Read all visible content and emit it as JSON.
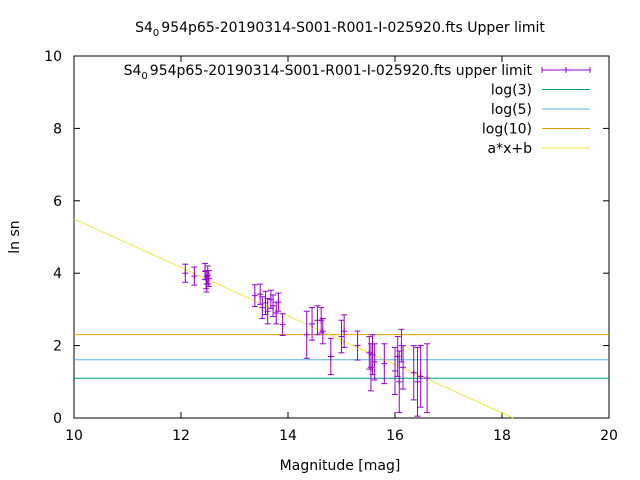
{
  "chart_data": {
    "type": "scatter",
    "title_prefix": "S4",
    "title_subscript": "0",
    "title_suffix": "954p65-20190314-S001-R001-I-025920.fts Upper limit",
    "xlabel": "Magnitude [mag]",
    "ylabel": "ln sn",
    "xlim": [
      10,
      20
    ],
    "ylim": [
      0,
      10
    ],
    "xticks": [
      "10",
      "12",
      "14",
      "16",
      "18",
      "20"
    ],
    "yticks": [
      "0",
      "2",
      "4",
      "6",
      "8",
      "10"
    ],
    "grid": false,
    "legend_position": "top-right",
    "legend": [
      {
        "prefix": "S4",
        "sub": "0",
        "suffix": "954p65-20190314-S001-R001-I-025920.fts upper limit",
        "kind": "errorbar",
        "color": "#9400d3"
      },
      {
        "text": "log(3)",
        "kind": "line",
        "color": "#009e73"
      },
      {
        "text": "log(5)",
        "kind": "line",
        "color": "#56b4e9"
      },
      {
        "text": "log(10)",
        "kind": "line",
        "color": "#e69f00"
      },
      {
        "text": "a*x+b",
        "kind": "line",
        "color": "#f0e442"
      }
    ],
    "hlines": [
      {
        "name": "log(3)",
        "y": 1.0986,
        "color": "#009e73"
      },
      {
        "name": "log(5)",
        "y": 1.6094,
        "color": "#56b4e9"
      },
      {
        "name": "log(10)",
        "y": 2.3026,
        "color": "#e69f00"
      }
    ],
    "fit": {
      "name": "a*x+b",
      "a": -0.67,
      "b": 12.2,
      "color": "#f0e442"
    },
    "series": [
      {
        "name": "S4_0954p65-20190314-S001-R001-I-025920.fts upper limit",
        "color": "#9400d3",
        "points": [
          {
            "x": 12.08,
            "y": 4.0,
            "err": 0.25
          },
          {
            "x": 12.25,
            "y": 3.92,
            "err": 0.25
          },
          {
            "x": 12.45,
            "y": 4.05,
            "err": 0.22
          },
          {
            "x": 12.47,
            "y": 3.82,
            "err": 0.25
          },
          {
            "x": 12.48,
            "y": 3.7,
            "err": 0.22
          },
          {
            "x": 12.5,
            "y": 3.95,
            "err": 0.25
          },
          {
            "x": 12.52,
            "y": 3.85,
            "err": 0.22
          },
          {
            "x": 13.38,
            "y": 3.38,
            "err": 0.3
          },
          {
            "x": 13.48,
            "y": 3.42,
            "err": 0.28
          },
          {
            "x": 13.52,
            "y": 3.05,
            "err": 0.3
          },
          {
            "x": 13.58,
            "y": 3.18,
            "err": 0.32
          },
          {
            "x": 13.62,
            "y": 2.95,
            "err": 0.35
          },
          {
            "x": 13.68,
            "y": 3.28,
            "err": 0.25
          },
          {
            "x": 13.72,
            "y": 3.1,
            "err": 0.3
          },
          {
            "x": 13.78,
            "y": 2.9,
            "err": 0.3
          },
          {
            "x": 13.82,
            "y": 3.2,
            "err": 0.25
          },
          {
            "x": 13.9,
            "y": 2.58,
            "err": 0.3
          },
          {
            "x": 14.35,
            "y": 2.3,
            "err": 0.65
          },
          {
            "x": 14.45,
            "y": 2.6,
            "err": 0.45
          },
          {
            "x": 14.55,
            "y": 2.7,
            "err": 0.4
          },
          {
            "x": 14.62,
            "y": 2.7,
            "err": 0.35
          },
          {
            "x": 14.65,
            "y": 2.4,
            "err": 0.35
          },
          {
            "x": 14.8,
            "y": 1.7,
            "err": 0.5
          },
          {
            "x": 15.0,
            "y": 2.25,
            "err": 0.45
          },
          {
            "x": 15.05,
            "y": 2.4,
            "err": 0.45
          },
          {
            "x": 15.3,
            "y": 2.0,
            "err": 0.4
          },
          {
            "x": 15.52,
            "y": 1.8,
            "err": 0.45
          },
          {
            "x": 15.55,
            "y": 1.4,
            "err": 0.65
          },
          {
            "x": 15.58,
            "y": 1.75,
            "err": 0.55
          },
          {
            "x": 15.62,
            "y": 1.55,
            "err": 0.5
          },
          {
            "x": 15.8,
            "y": 1.5,
            "err": 0.55
          },
          {
            "x": 16.0,
            "y": 1.3,
            "err": 0.65
          },
          {
            "x": 16.05,
            "y": 1.7,
            "err": 0.55
          },
          {
            "x": 16.08,
            "y": 1.0,
            "err": 0.85
          },
          {
            "x": 16.12,
            "y": 2.0,
            "err": 0.45
          },
          {
            "x": 16.15,
            "y": 1.4,
            "err": 0.6
          },
          {
            "x": 16.35,
            "y": 1.25,
            "err": 0.75
          },
          {
            "x": 16.42,
            "y": 1.0,
            "err": 0.95
          },
          {
            "x": 16.48,
            "y": 1.15,
            "err": 0.85
          },
          {
            "x": 16.6,
            "y": 1.1,
            "err": 0.95
          }
        ]
      }
    ]
  }
}
